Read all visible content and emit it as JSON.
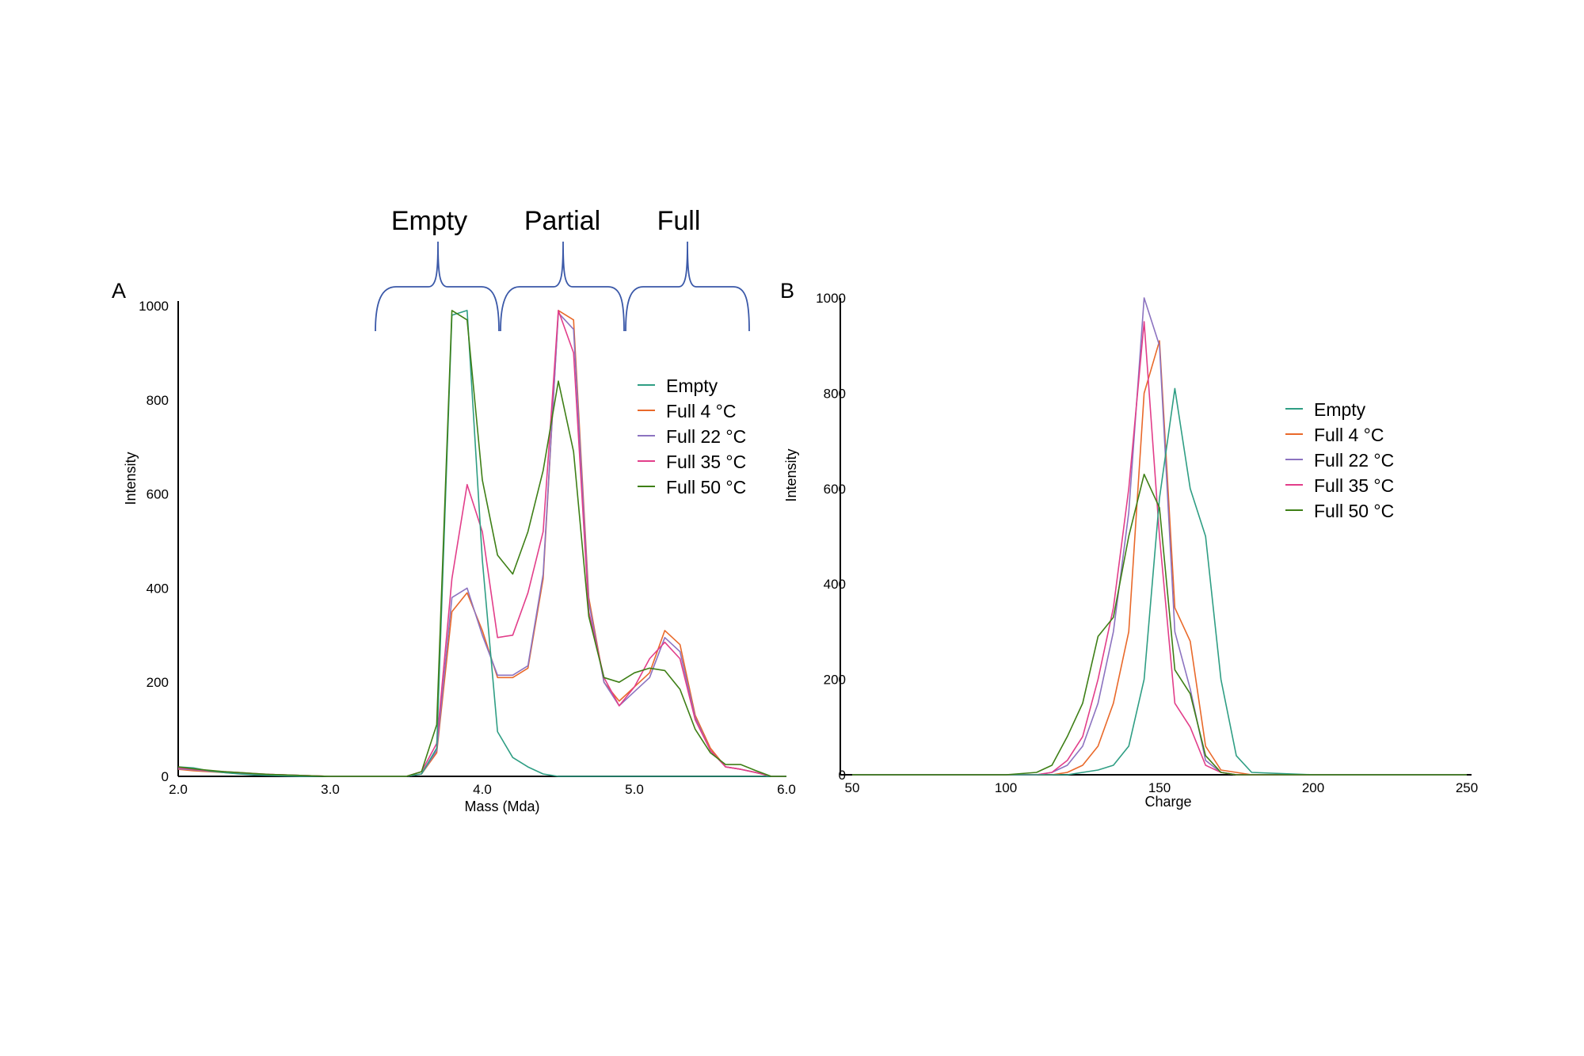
{
  "colors": {
    "empty": "#2f9e84",
    "full_4c": "#e9692a",
    "full_22c": "#8c73c0",
    "full_35c": "#e23e8a",
    "full_50c": "#3e7f16",
    "brace": "#3a58a8"
  },
  "legend": [
    "Empty",
    "Full 4 °C",
    "Full 22 °C",
    "Full 35 °C",
    "Full 50 °C"
  ],
  "chart_data": [
    {
      "type": "line",
      "panel_label": "A",
      "xlabel": "Mass (Mda)",
      "ylabel": "Intensity",
      "xlim": [
        2.0,
        6.0
      ],
      "ylim": [
        0,
        1000
      ],
      "xticks": [
        "2.0",
        "3.0",
        "4.0",
        "5.0",
        "6.0"
      ],
      "yticks": [
        "0",
        "200",
        "400",
        "600",
        "800",
        "1000"
      ],
      "legend_position": "upper-right",
      "region_labels": [
        "Empty",
        "Partial",
        "Full"
      ],
      "x": [
        2.0,
        2.1,
        2.2,
        2.3,
        2.4,
        2.5,
        2.6,
        2.7,
        2.8,
        2.9,
        3.0,
        3.1,
        3.2,
        3.3,
        3.4,
        3.5,
        3.6,
        3.7,
        3.8,
        3.9,
        4.0,
        4.1,
        4.2,
        4.3,
        4.4,
        4.5,
        4.6,
        4.7,
        4.8,
        4.9,
        5.0,
        5.1,
        5.2,
        5.3,
        5.4,
        5.5,
        5.6,
        5.7,
        5.8,
        5.9,
        6.0
      ],
      "series": [
        {
          "name": "Empty",
          "color_key": "empty",
          "values": [
            20,
            18,
            12,
            8,
            5,
            3,
            2,
            1,
            0,
            0,
            0,
            0,
            0,
            0,
            0,
            0,
            5,
            60,
            980,
            990,
            460,
            95,
            40,
            20,
            5,
            0,
            0,
            0,
            0,
            0,
            0,
            0,
            0,
            0,
            0,
            0,
            0,
            0,
            0,
            0,
            0
          ]
        },
        {
          "name": "Full 4 °C",
          "color_key": "full_4c",
          "values": [
            15,
            12,
            10,
            8,
            6,
            5,
            4,
            3,
            2,
            1,
            0,
            0,
            0,
            0,
            0,
            0,
            5,
            50,
            350,
            390,
            310,
            210,
            210,
            230,
            420,
            990,
            970,
            380,
            200,
            160,
            190,
            220,
            310,
            280,
            130,
            60,
            20,
            15,
            8,
            0,
            0
          ]
        },
        {
          "name": "Full 22 °C",
          "color_key": "full_22c",
          "values": [
            16,
            14,
            11,
            9,
            7,
            5,
            4,
            3,
            2,
            1,
            0,
            0,
            0,
            0,
            0,
            0,
            5,
            55,
            380,
            400,
            300,
            215,
            215,
            235,
            430,
            985,
            950,
            370,
            200,
            150,
            180,
            210,
            295,
            265,
            125,
            55,
            20,
            15,
            8,
            0,
            0
          ]
        },
        {
          "name": "Full 35 °C",
          "color_key": "full_35c",
          "values": [
            18,
            15,
            12,
            10,
            8,
            6,
            4,
            3,
            2,
            1,
            0,
            0,
            0,
            0,
            0,
            0,
            10,
            70,
            420,
            620,
            520,
            295,
            300,
            390,
            520,
            990,
            900,
            350,
            210,
            150,
            190,
            250,
            285,
            250,
            120,
            55,
            20,
            15,
            8,
            0,
            0
          ]
        },
        {
          "name": "Full 50 °C",
          "color_key": "full_50c",
          "values": [
            20,
            16,
            13,
            10,
            8,
            6,
            4,
            3,
            2,
            1,
            0,
            0,
            0,
            0,
            0,
            0,
            10,
            110,
            990,
            970,
            630,
            470,
            430,
            520,
            650,
            840,
            690,
            340,
            210,
            200,
            220,
            230,
            225,
            185,
            100,
            50,
            25,
            25,
            12,
            0,
            0
          ]
        }
      ]
    },
    {
      "type": "line",
      "panel_label": "B",
      "xlabel": "Charge",
      "ylabel": "Intensity",
      "xlim": [
        50,
        250
      ],
      "ylim": [
        0,
        1000
      ],
      "xticks": [
        "50",
        "100",
        "150",
        "200",
        "250"
      ],
      "yticks": [
        "0",
        "200",
        "400",
        "600",
        "800",
        "1000"
      ],
      "legend_position": "upper-right",
      "x": [
        50,
        100,
        110,
        115,
        120,
        125,
        130,
        135,
        140,
        145,
        150,
        155,
        160,
        165,
        170,
        175,
        180,
        200,
        250
      ],
      "series": [
        {
          "name": "Empty",
          "color_key": "empty",
          "values": [
            0,
            0,
            0,
            0,
            0,
            5,
            10,
            20,
            60,
            200,
            580,
            810,
            600,
            500,
            200,
            40,
            5,
            0,
            0
          ]
        },
        {
          "name": "Full 4 °C",
          "color_key": "full_4c",
          "values": [
            0,
            0,
            0,
            0,
            5,
            20,
            60,
            150,
            300,
            800,
            910,
            350,
            280,
            60,
            10,
            5,
            0,
            0,
            0
          ]
        },
        {
          "name": "Full 22 °C",
          "color_key": "full_22c",
          "values": [
            0,
            0,
            0,
            5,
            20,
            60,
            150,
            300,
            550,
            1000,
            900,
            300,
            180,
            30,
            5,
            0,
            0,
            0,
            0
          ]
        },
        {
          "name": "Full 35 °C",
          "color_key": "full_35c",
          "values": [
            0,
            0,
            0,
            5,
            30,
            80,
            200,
            350,
            600,
            950,
            500,
            150,
            100,
            20,
            5,
            0,
            0,
            0,
            0
          ]
        },
        {
          "name": "Full 50 °C",
          "color_key": "full_50c",
          "values": [
            0,
            0,
            5,
            20,
            80,
            150,
            290,
            330,
            500,
            630,
            560,
            220,
            170,
            40,
            5,
            0,
            0,
            0,
            0
          ]
        }
      ]
    }
  ]
}
